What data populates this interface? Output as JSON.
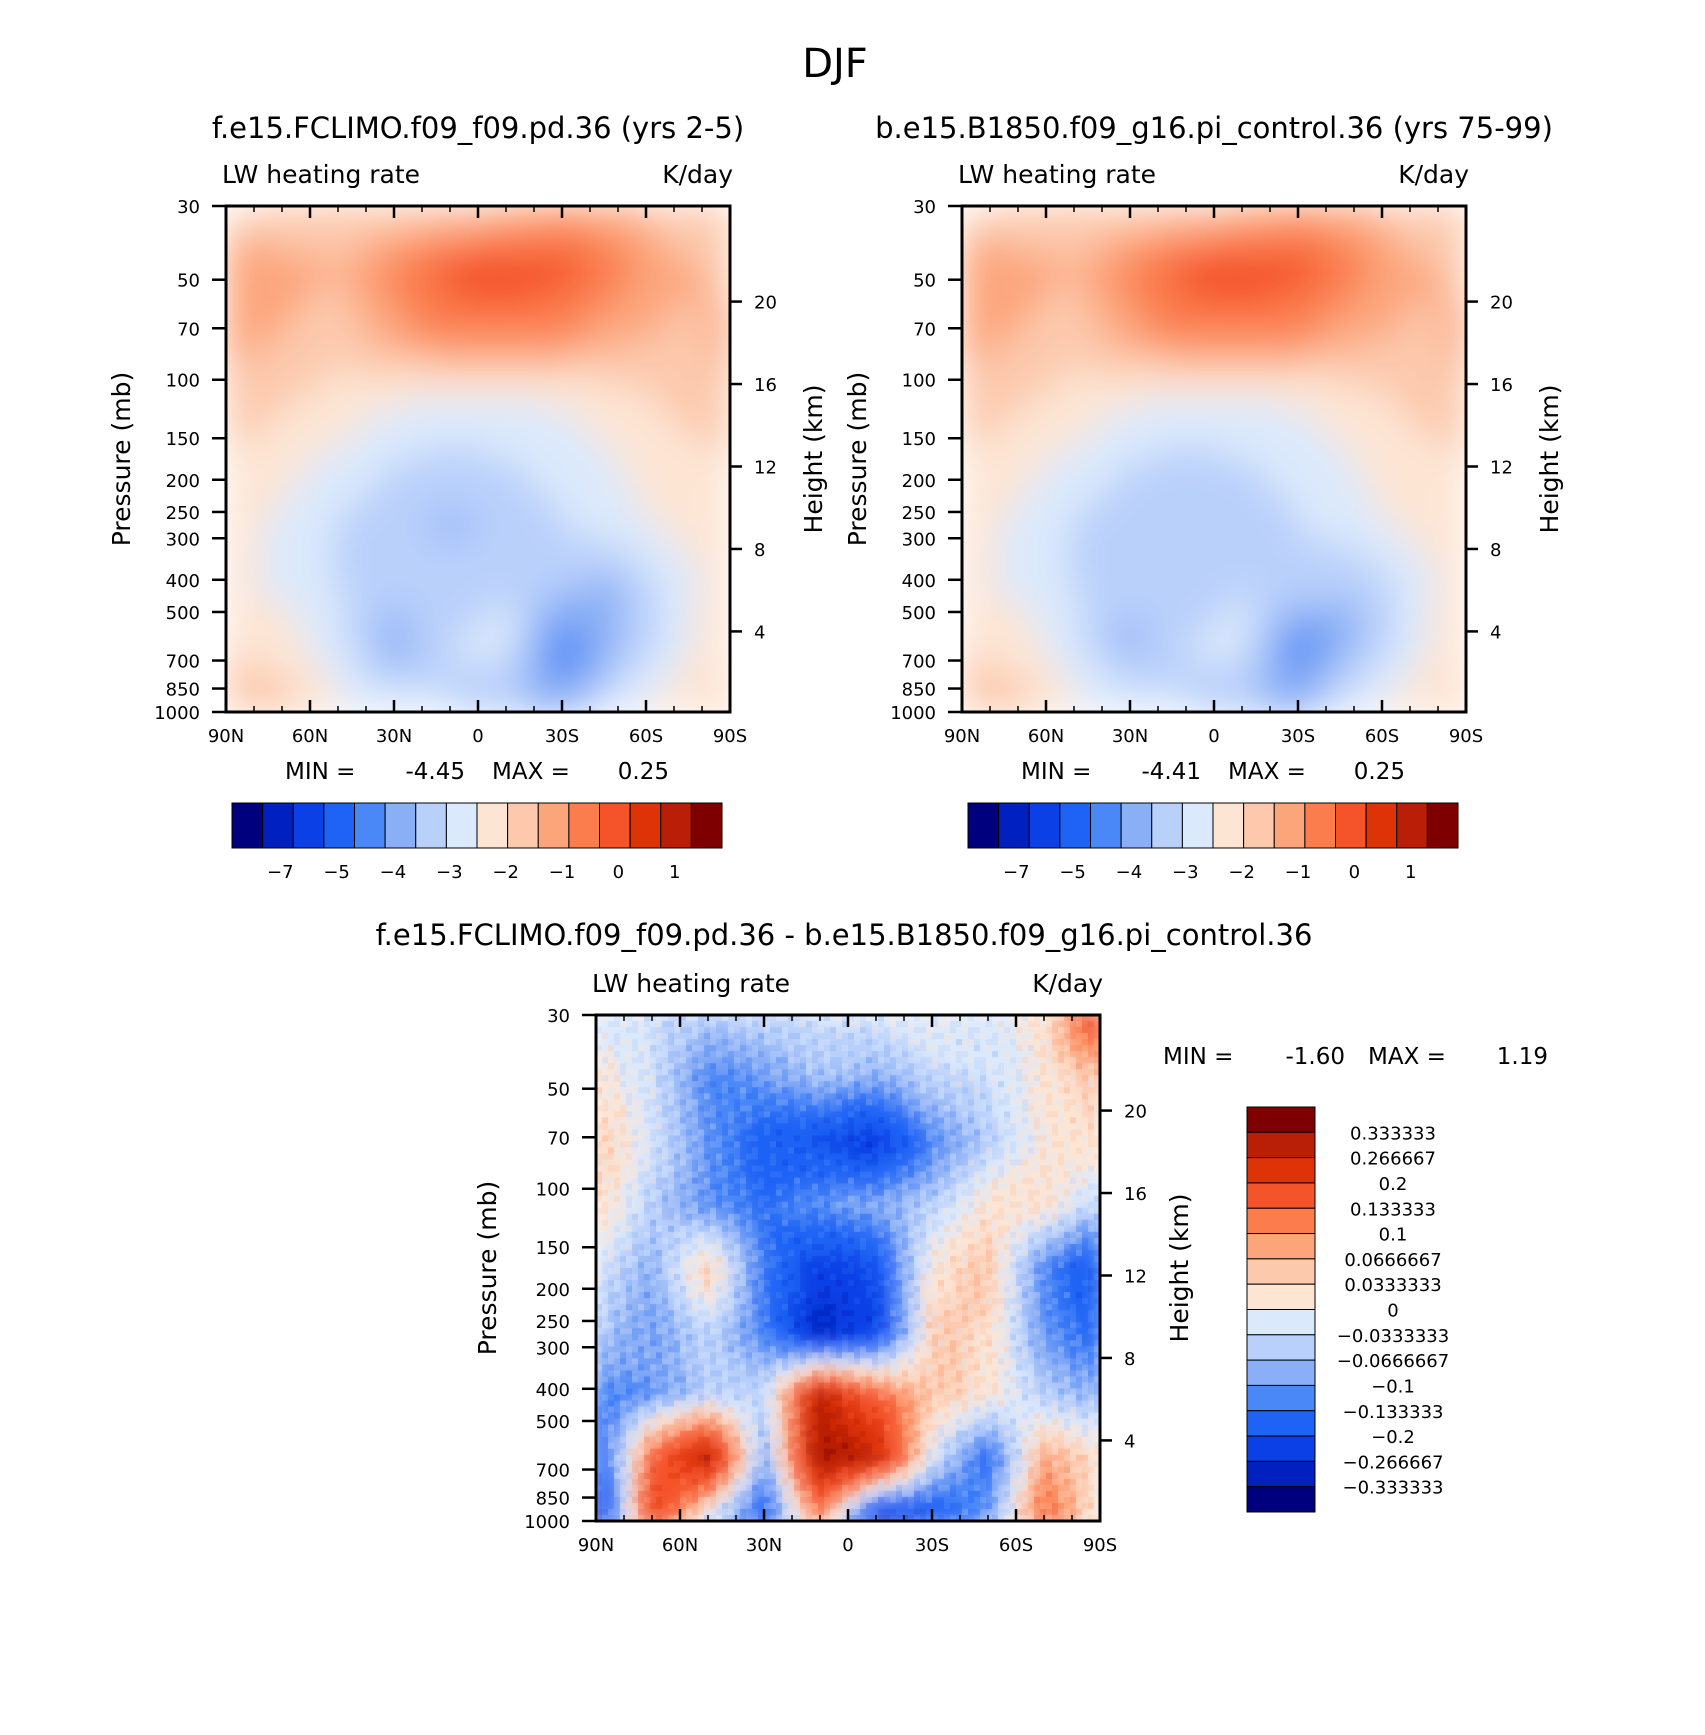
{
  "figure_title": "DJF",
  "colors": {
    "scale": [
      "#00007f",
      "#0020c0",
      "#0a40e6",
      "#1e63f5",
      "#4a87f7",
      "#8aaff6",
      "#b9d0fb",
      "#dbe9fc",
      "#fde5d4",
      "#fcc9ad",
      "#fca57b",
      "#fb7d4e",
      "#f5532a",
      "#de3207",
      "#b81f06",
      "#7f0000"
    ],
    "axis": "#000000"
  },
  "chart_data": [
    {
      "type": "heatmap",
      "panel_title": "f.e15.FCLIMO.f09_f09.pd.36 (yrs 2-5)",
      "left_label": "LW heating rate",
      "right_label": "K/day",
      "ylabel": "Pressure (mb)",
      "ylabel_right": "Height (km)",
      "x_ticks": [
        "90N",
        "60N",
        "30N",
        "0",
        "30S",
        "60S",
        "90S"
      ],
      "x_values": [
        90,
        60,
        30,
        0,
        -30,
        -60,
        -90
      ],
      "y_ticks": [
        "30",
        "50",
        "70",
        "100",
        "150",
        "200",
        "250",
        "300",
        "400",
        "500",
        "700",
        "850",
        "1000"
      ],
      "y_values": [
        30,
        50,
        70,
        100,
        150,
        200,
        250,
        300,
        400,
        500,
        700,
        850,
        1000
      ],
      "height_ticks": [
        "20",
        "16",
        "12",
        "8",
        "4"
      ],
      "height_values": [
        20,
        16,
        12,
        8,
        4
      ],
      "min_label": "MIN =",
      "min_value": "-4.45",
      "max_label": "MAX =",
      "max_value": "0.25",
      "colorbar_labels": [
        "−7",
        "−5",
        "−4",
        "−3",
        "−2",
        "−1",
        "0",
        "1"
      ],
      "field": [
        [
          -2.2,
          -2.0,
          -1.9,
          -2.0,
          -1.8,
          -1.6,
          -1.2,
          -1.4,
          -1.8,
          -2.0
        ],
        [
          -1.0,
          -1.3,
          -1.5,
          -0.8,
          -0.3,
          -0.2,
          -0.3,
          -0.8,
          -1.4,
          -1.6
        ],
        [
          -1.2,
          -1.5,
          -1.8,
          -1.2,
          -0.8,
          -0.7,
          -0.9,
          -1.3,
          -1.6,
          -1.4
        ],
        [
          -1.7,
          -1.9,
          -2.2,
          -2.4,
          -2.5,
          -2.5,
          -2.4,
          -2.2,
          -1.8,
          -1.5
        ],
        [
          -2.0,
          -2.3,
          -2.6,
          -3.0,
          -3.1,
          -3.0,
          -2.8,
          -2.5,
          -2.3,
          -2.0
        ],
        [
          -2.2,
          -2.6,
          -3.0,
          -3.4,
          -3.6,
          -3.4,
          -3.0,
          -2.6,
          -2.4,
          -2.1
        ],
        [
          -2.4,
          -2.6,
          -3.0,
          -3.4,
          -3.2,
          -3.0,
          -3.4,
          -3.6,
          -2.8,
          -2.2
        ],
        [
          -2.0,
          -2.2,
          -2.8,
          -3.8,
          -3.0,
          -2.9,
          -4.4,
          -3.6,
          -2.7,
          -2.0
        ],
        [
          -1.8,
          -1.7,
          -2.4,
          -2.6,
          -3.0,
          -3.4,
          -3.8,
          -2.6,
          -2.3,
          -1.9
        ]
      ]
    },
    {
      "type": "heatmap",
      "panel_title": "b.e15.B1850.f09_g16.pi_control.36 (yrs 75-99)",
      "left_label": "LW heating rate",
      "right_label": "K/day",
      "ylabel": "Pressure (mb)",
      "ylabel_right": "Height (km)",
      "x_ticks": [
        "90N",
        "60N",
        "30N",
        "0",
        "30S",
        "60S",
        "90S"
      ],
      "x_values": [
        90,
        60,
        30,
        0,
        -30,
        -60,
        -90
      ],
      "y_ticks": [
        "30",
        "50",
        "70",
        "100",
        "150",
        "200",
        "250",
        "300",
        "400",
        "500",
        "700",
        "850",
        "1000"
      ],
      "y_values": [
        30,
        50,
        70,
        100,
        150,
        200,
        250,
        300,
        400,
        500,
        700,
        850,
        1000
      ],
      "height_ticks": [
        "20",
        "16",
        "12",
        "8",
        "4"
      ],
      "height_values": [
        20,
        16,
        12,
        8,
        4
      ],
      "min_label": "MIN =",
      "min_value": "-4.41",
      "max_label": "MAX =",
      "max_value": "0.25",
      "colorbar_labels": [
        "−7",
        "−5",
        "−4",
        "−3",
        "−2",
        "−1",
        "0",
        "1"
      ],
      "field": [
        [
          -2.2,
          -2.0,
          -1.9,
          -2.0,
          -1.8,
          -1.6,
          -1.2,
          -1.4,
          -1.8,
          -2.0
        ],
        [
          -1.0,
          -1.3,
          -1.5,
          -0.8,
          -0.3,
          -0.2,
          -0.3,
          -0.8,
          -1.4,
          -1.6
        ],
        [
          -1.2,
          -1.5,
          -1.8,
          -1.2,
          -0.8,
          -0.7,
          -0.9,
          -1.3,
          -1.6,
          -1.4
        ],
        [
          -1.7,
          -1.9,
          -2.2,
          -2.4,
          -2.5,
          -2.5,
          -2.4,
          -2.2,
          -1.8,
          -1.5
        ],
        [
          -2.0,
          -2.3,
          -2.6,
          -3.0,
          -3.1,
          -3.0,
          -2.8,
          -2.5,
          -2.3,
          -2.0
        ],
        [
          -2.2,
          -2.6,
          -3.0,
          -3.3,
          -3.5,
          -3.4,
          -3.0,
          -2.6,
          -2.4,
          -2.1
        ],
        [
          -2.4,
          -2.6,
          -3.0,
          -3.4,
          -3.2,
          -3.0,
          -3.3,
          -3.5,
          -2.8,
          -2.2
        ],
        [
          -2.0,
          -2.2,
          -2.8,
          -3.7,
          -3.0,
          -2.9,
          -4.3,
          -3.5,
          -2.7,
          -2.0
        ],
        [
          -1.8,
          -1.7,
          -2.4,
          -2.6,
          -3.0,
          -3.4,
          -3.7,
          -2.6,
          -2.3,
          -1.9
        ]
      ]
    },
    {
      "type": "heatmap",
      "panel_title": "f.e15.FCLIMO.f09_f09.pd.36 - b.e15.B1850.f09_g16.pi_control.36",
      "left_label": "LW heating rate",
      "right_label": "K/day",
      "ylabel": "Pressure (mb)",
      "ylabel_right": "Height (km)",
      "x_ticks": [
        "90N",
        "60N",
        "30N",
        "0",
        "30S",
        "60S",
        "90S"
      ],
      "x_values": [
        90,
        60,
        30,
        0,
        -30,
        -60,
        -90
      ],
      "y_ticks": [
        "30",
        "50",
        "70",
        "100",
        "150",
        "200",
        "250",
        "300",
        "400",
        "500",
        "700",
        "850",
        "1000"
      ],
      "y_values": [
        30,
        50,
        70,
        100,
        150,
        200,
        250,
        300,
        400,
        500,
        700,
        850,
        1000
      ],
      "height_ticks": [
        "20",
        "16",
        "12",
        "8",
        "4"
      ],
      "height_values": [
        20,
        16,
        12,
        8,
        4
      ],
      "min_label": "MIN =",
      "min_value": "-1.60",
      "max_label": "MAX =",
      "max_value": "1.19",
      "colorbar_labels": [
        "0.333333",
        "0.266667",
        "0.2",
        "0.133333",
        "0.1",
        "0.0666667",
        "0.0333333",
        "0",
        "−0.0333333",
        "−0.0666667",
        "−0.1",
        "−0.133333",
        "−0.2",
        "−0.266667",
        "−0.333333"
      ],
      "field": [
        [
          -0.02,
          -0.03,
          -0.05,
          -0.04,
          -0.03,
          -0.02,
          0.0,
          -0.02,
          0.02,
          0.22
        ],
        [
          0.02,
          -0.03,
          -0.12,
          -0.1,
          -0.06,
          -0.08,
          -0.04,
          -0.03,
          0.01,
          0.05
        ],
        [
          0.05,
          -0.02,
          -0.1,
          -0.16,
          -0.21,
          -0.24,
          -0.12,
          -0.05,
          0.01,
          0.03
        ],
        [
          0.04,
          -0.05,
          -0.11,
          -0.14,
          -0.1,
          -0.08,
          -0.05,
          0.02,
          0.03,
          -0.05
        ],
        [
          -0.02,
          -0.08,
          0.05,
          -0.12,
          -0.24,
          -0.2,
          0.02,
          0.05,
          -0.12,
          -0.2
        ],
        [
          -0.05,
          -0.1,
          -0.04,
          -0.12,
          -0.3,
          -0.22,
          0.04,
          0.03,
          -0.1,
          -0.16
        ],
        [
          -0.12,
          -0.1,
          -0.05,
          -0.04,
          0.28,
          0.14,
          0.05,
          0.02,
          -0.05,
          -0.08
        ],
        [
          -0.2,
          0.15,
          0.3,
          -0.1,
          0.33,
          0.28,
          -0.02,
          -0.15,
          0.08,
          0.02
        ],
        [
          -0.3,
          0.22,
          -0.05,
          -0.18,
          0.1,
          -0.3,
          -0.2,
          -0.1,
          0.15,
          0.0
        ]
      ]
    }
  ]
}
